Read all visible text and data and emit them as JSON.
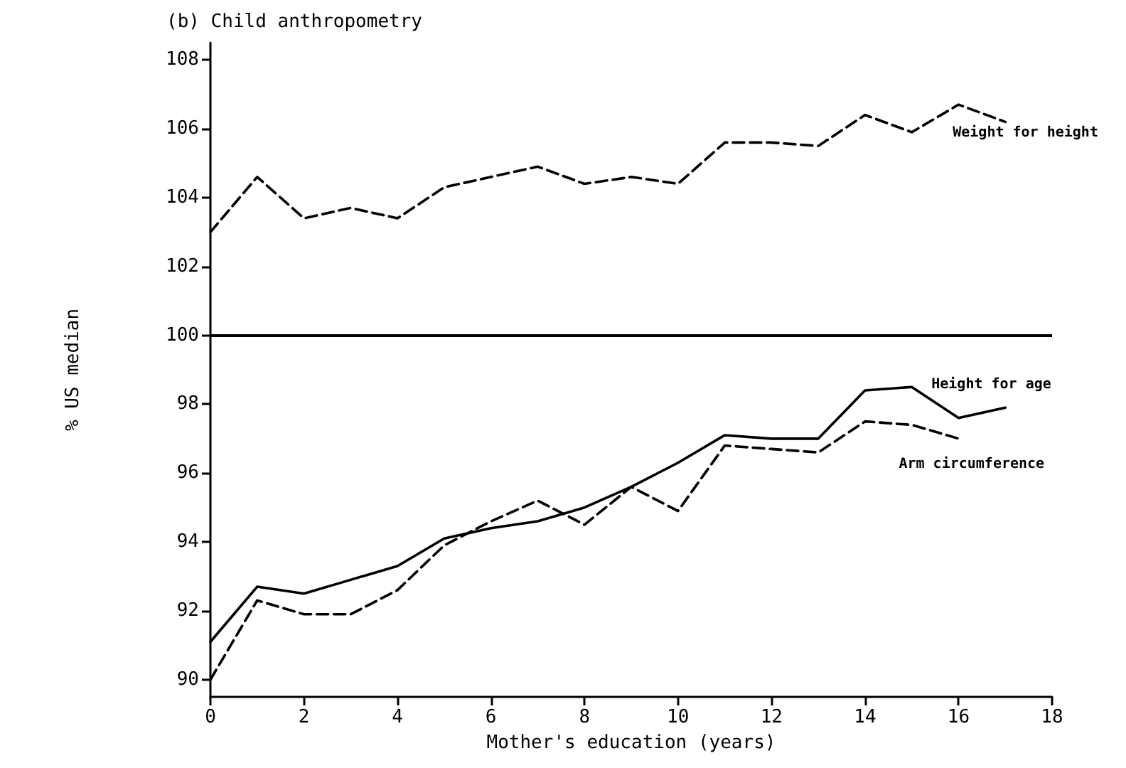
{
  "chart_data": {
    "type": "line",
    "title": "(b) Child anthropometry",
    "xlabel": "Mother's education (years)",
    "ylabel": "% US median",
    "x": [
      0,
      1,
      2,
      3,
      4,
      5,
      6,
      7,
      8,
      9,
      10,
      11,
      12,
      13,
      14,
      15,
      16,
      17
    ],
    "series": [
      {
        "name": "Weight for height",
        "color": "#000000",
        "line_style": "dashed",
        "values": [
          103.0,
          104.6,
          103.4,
          103.7,
          103.4,
          104.3,
          104.6,
          104.9,
          104.4,
          104.6,
          104.4,
          105.6,
          105.6,
          105.5,
          106.4,
          105.9,
          106.7,
          106.2
        ]
      },
      {
        "name": "Height for age",
        "color": "#000000",
        "line_style": "solid",
        "values": [
          91.1,
          92.7,
          92.5,
          92.9,
          93.3,
          94.1,
          94.4,
          94.6,
          95.0,
          95.6,
          96.3,
          97.1,
          97.0,
          97.0,
          98.4,
          98.5,
          97.6,
          97.9
        ]
      },
      {
        "name": "Arm circumference",
        "color": "#000000",
        "line_style": "dashed",
        "x": [
          0,
          1,
          2,
          3,
          4,
          5,
          6,
          7,
          8,
          9,
          10,
          11,
          12,
          13,
          14,
          15,
          16
        ],
        "values": [
          90.0,
          92.3,
          91.9,
          91.9,
          92.6,
          93.9,
          94.6,
          95.2,
          94.5,
          95.6,
          94.9,
          96.8,
          96.7,
          96.6,
          97.5,
          97.4,
          97.0
        ]
      }
    ],
    "ref_lines": [
      {
        "axis": "y",
        "value": 100,
        "color": "#000000",
        "line_style": "solid"
      }
    ],
    "xlim": [
      0,
      18
    ],
    "xticks": [
      0,
      2,
      4,
      6,
      8,
      10,
      12,
      14,
      16,
      18
    ],
    "ylim": [
      89.5,
      108.5
    ],
    "yticks": [
      90,
      92,
      94,
      96,
      98,
      100,
      102,
      104,
      106,
      108
    ],
    "grid": false,
    "legend": false,
    "marker": "none"
  }
}
